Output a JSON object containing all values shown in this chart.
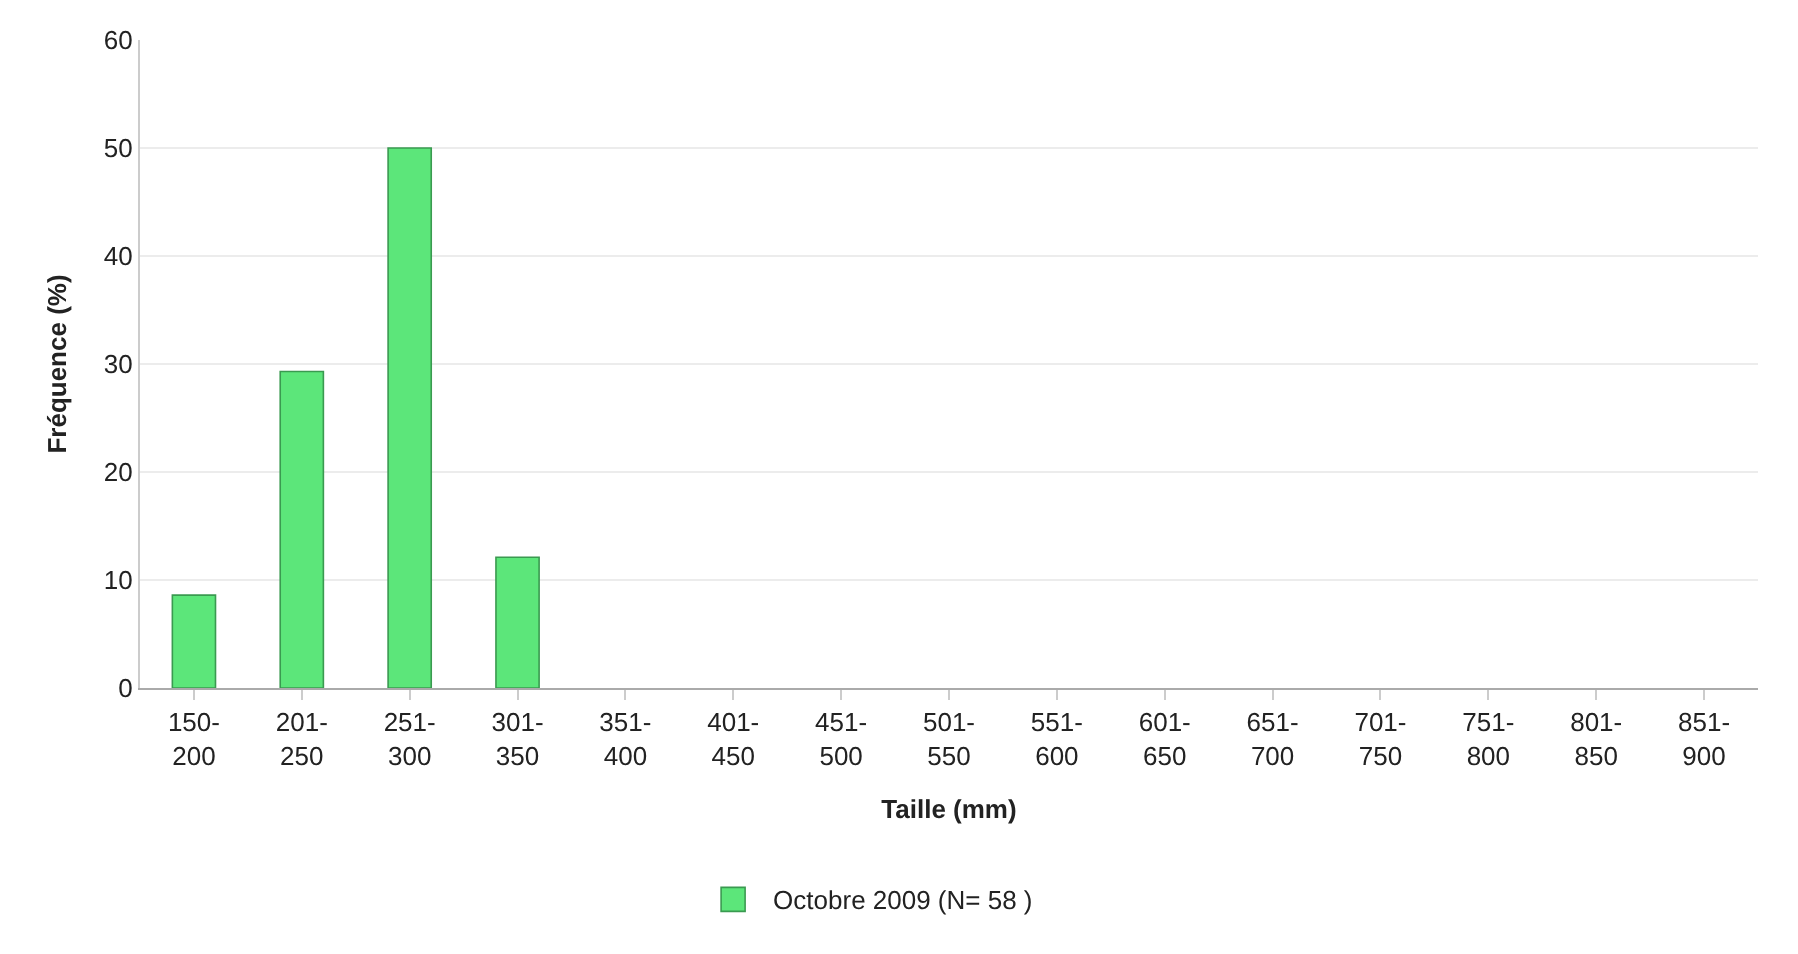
{
  "chart_data": {
    "type": "bar",
    "xlabel": "Taille (mm)",
    "ylabel": "Fréquence (%)",
    "categories": [
      "150-200",
      "201-250",
      "251-300",
      "301-350",
      "351-400",
      "401-450",
      "451-500",
      "501-550",
      "551-600",
      "601-650",
      "651-700",
      "701-750",
      "751-800",
      "801-850",
      "851-900"
    ],
    "series": [
      {
        "name": "Octobre 2009 (N= 58 )",
        "color": "#5ce67a",
        "values": [
          8.6,
          29.3,
          50,
          12.1,
          0,
          0,
          0,
          0,
          0,
          0,
          0,
          0,
          0,
          0,
          0
        ]
      }
    ],
    "ylim": [
      0,
      60
    ],
    "yticks": [
      0,
      10,
      20,
      30,
      40,
      50,
      60
    ],
    "grid": "y",
    "legend": "bottom"
  }
}
